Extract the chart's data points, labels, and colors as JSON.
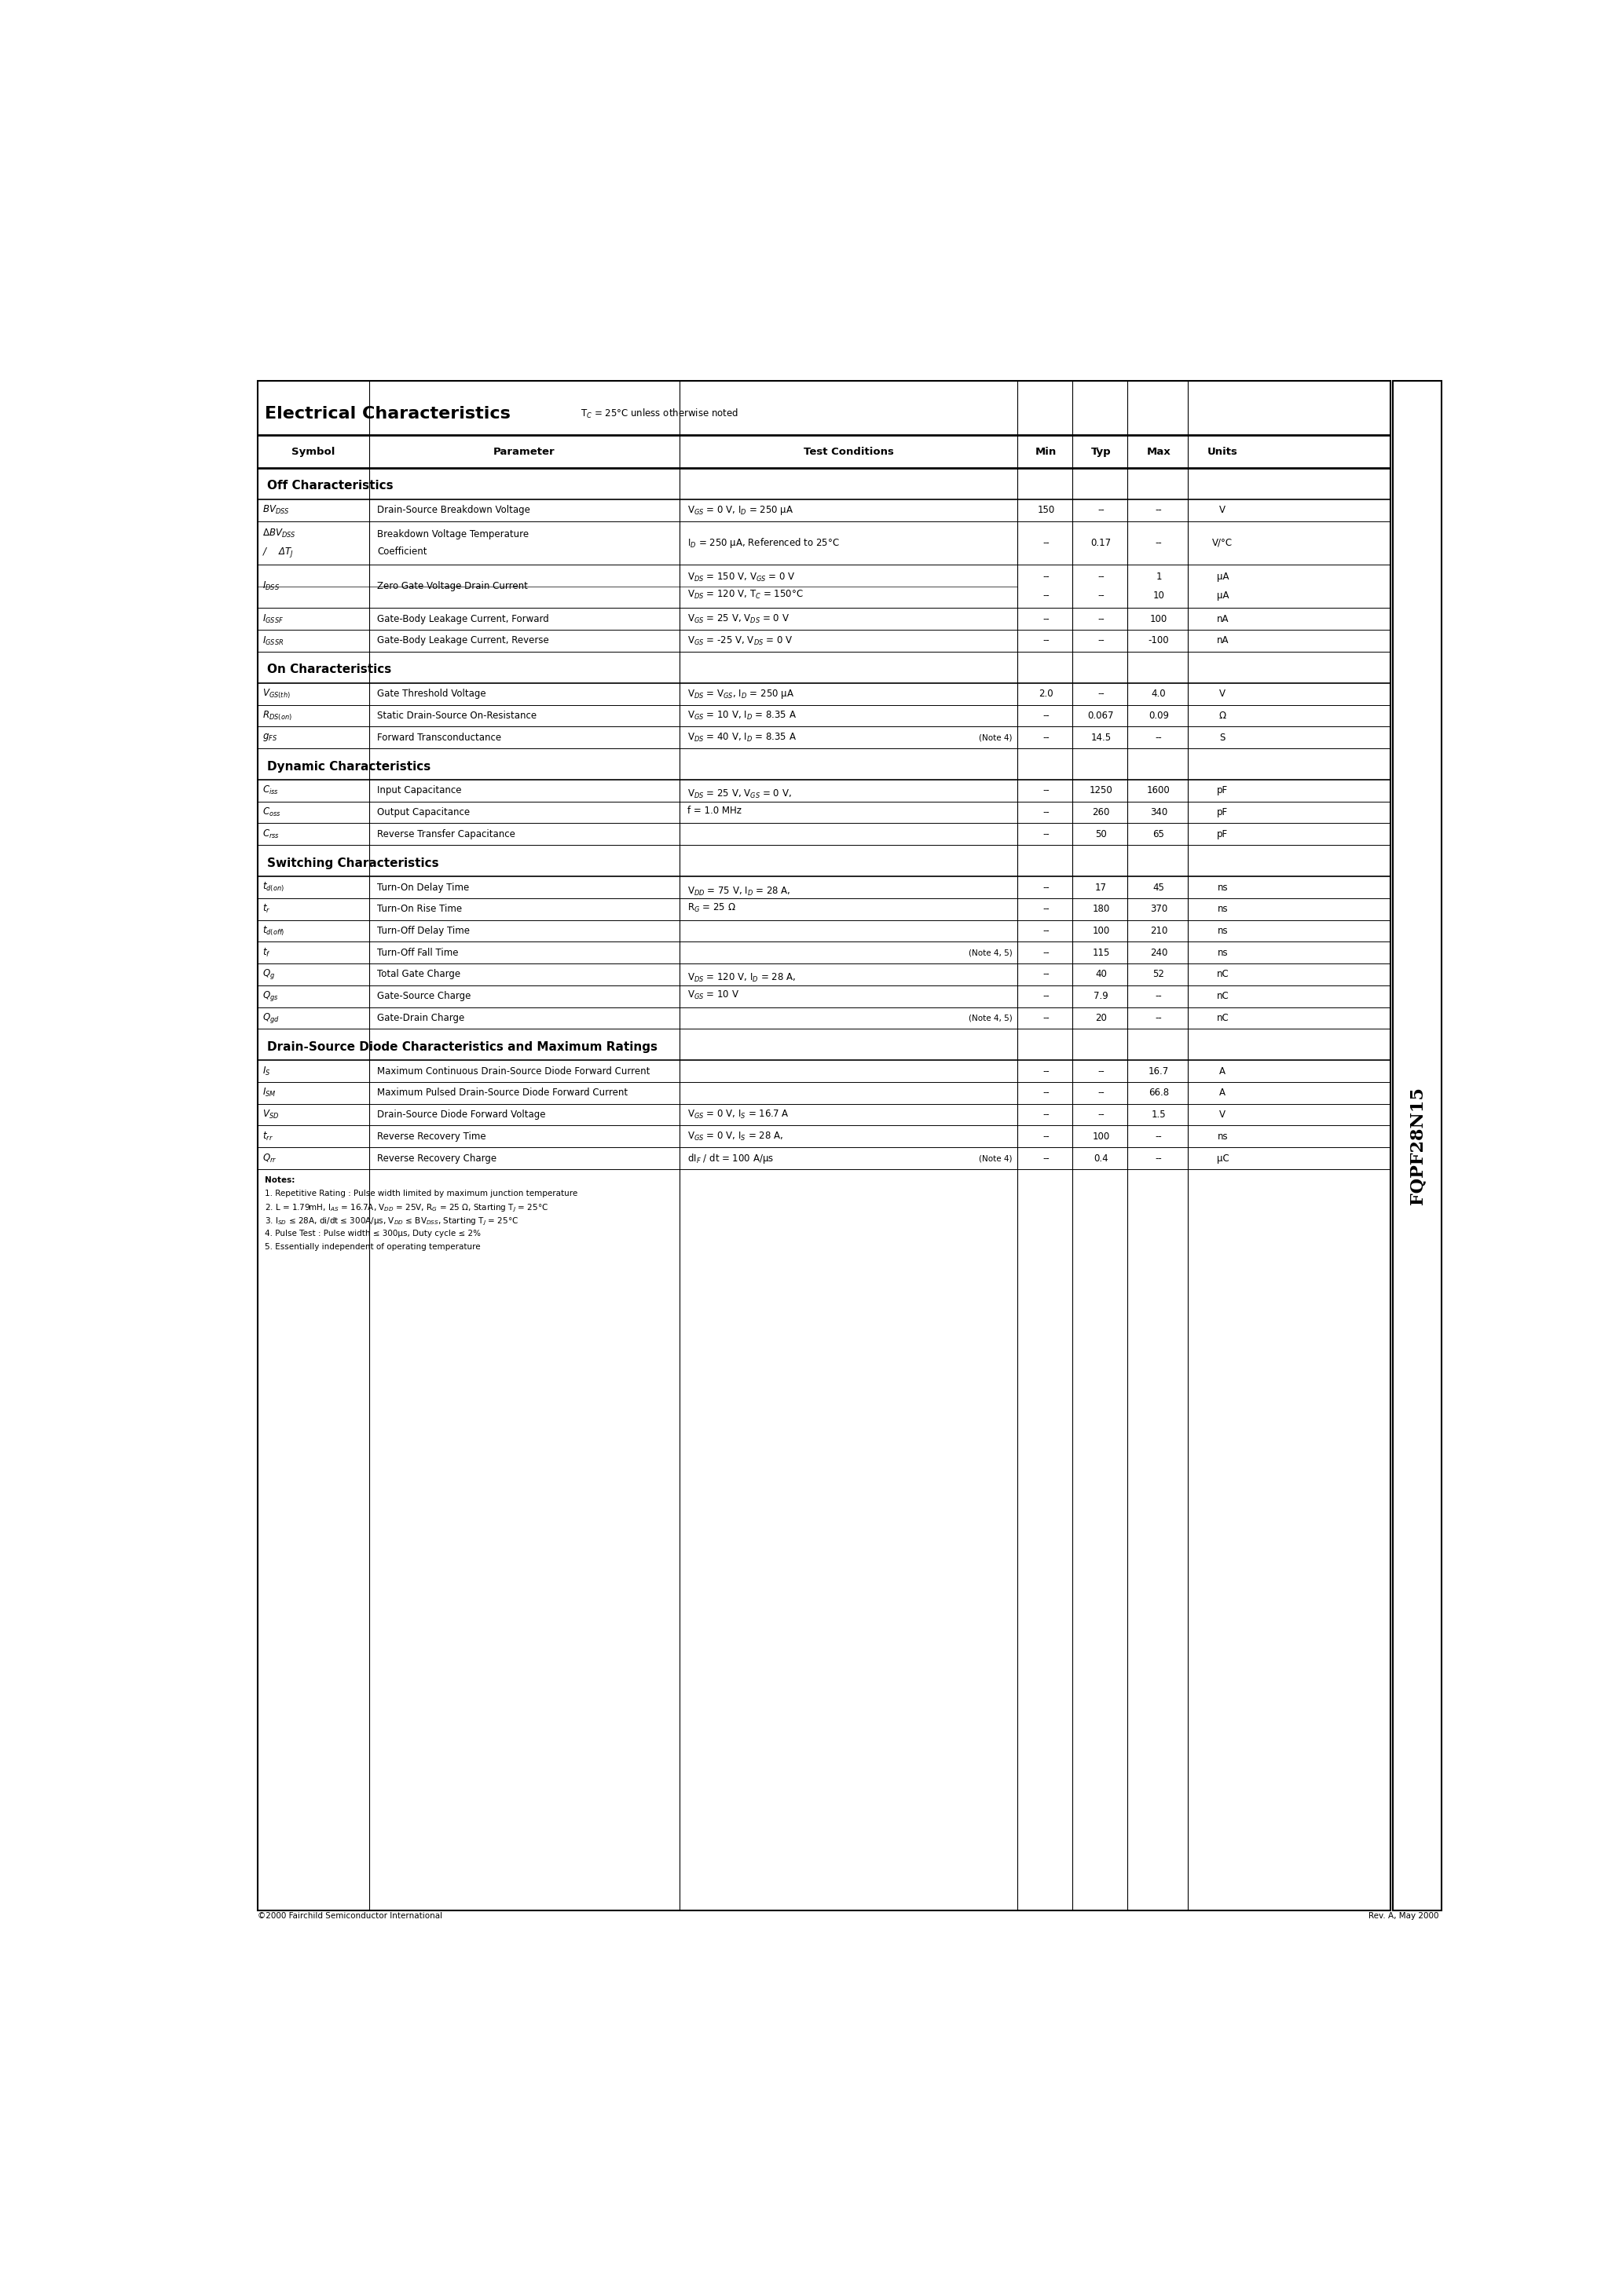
{
  "title": "Electrical Characteristics",
  "title_note": "T$_C$ = 25°C unless otherwise noted",
  "part_number": "FQPF28N15",
  "page_note_left": "©2000 Fairchild Semiconductor International",
  "page_note_right": "Rev. A, May 2000",
  "bg_color": "#ffffff",
  "border_color": "#000000",
  "text_color": "#000000",
  "sidebar_text": "FQPF28N15"
}
